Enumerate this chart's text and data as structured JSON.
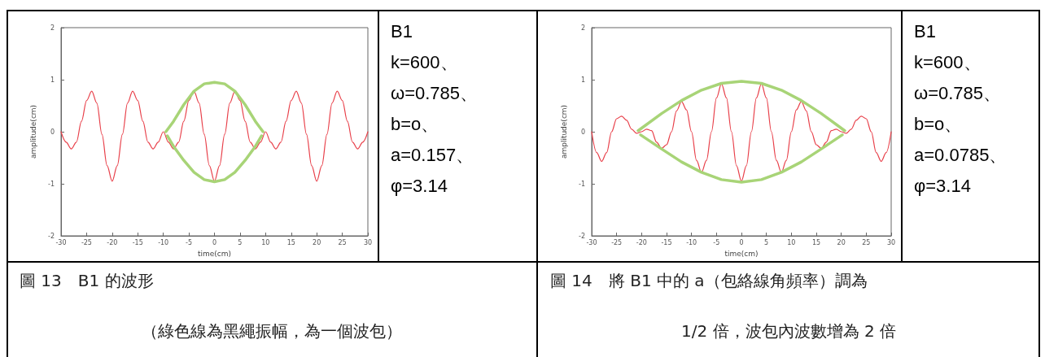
{
  "chart_data": [
    {
      "type": "line",
      "xlabel": "time(cm)",
      "ylabel": "amplitude(cm)",
      "xlim": [
        -30,
        30
      ],
      "xticks": [
        -30,
        -25,
        -20,
        -15,
        -10,
        -5,
        0,
        5,
        10,
        15,
        20,
        25,
        30
      ],
      "ylim": [
        -2,
        2
      ],
      "yticks": [
        -2,
        -1,
        0,
        1,
        2
      ],
      "grid": false,
      "marker": "none",
      "line_style": "solid",
      "annotations": [
        "圖 13　B1 的波形",
        "（綠色線為黑繩振幅，為一個波包）"
      ],
      "series": [
        {
          "color": "#e8404a",
          "x": [
            -30,
            -29,
            -28,
            -27,
            -26,
            -25,
            -24,
            -23,
            -22,
            -21,
            -20,
            -19,
            -18,
            -17,
            -16,
            -15,
            -14,
            -13,
            -12,
            -11,
            -10,
            -9,
            -8,
            -7,
            -6,
            -5,
            -4,
            -3,
            -2,
            -1,
            0,
            1,
            2,
            3,
            4,
            5,
            6,
            7,
            8,
            9,
            10,
            11,
            12,
            13,
            14,
            15,
            16,
            17,
            18,
            19,
            20,
            21,
            22,
            23,
            24,
            25,
            26,
            27,
            28,
            29,
            30
          ],
          "values": [
            0,
            -0.2,
            -0.33,
            -0.2,
            0.2,
            0.6,
            0.78,
            0.55,
            -0.05,
            -0.65,
            -0.95,
            -0.65,
            -0.05,
            0.55,
            0.78,
            0.6,
            0.2,
            -0.2,
            -0.33,
            -0.2,
            0,
            -0.2,
            -0.33,
            -0.2,
            0.2,
            0.6,
            0.78,
            0.55,
            -0.05,
            -0.65,
            -0.95,
            -0.65,
            -0.05,
            0.55,
            0.78,
            0.6,
            0.2,
            -0.2,
            -0.33,
            -0.2,
            0,
            -0.2,
            -0.33,
            -0.2,
            0.2,
            0.6,
            0.78,
            0.55,
            -0.05,
            -0.65,
            -0.95,
            -0.65,
            -0.05,
            0.55,
            0.78,
            0.6,
            0.2,
            -0.2,
            -0.33,
            -0.2,
            0
          ]
        },
        {
          "color": "#a8d477",
          "x": [
            -9.5,
            -8,
            -6,
            -4,
            -2,
            0,
            2,
            4,
            6,
            8,
            9.5
          ],
          "values": [
            0,
            0.2,
            0.52,
            0.78,
            0.92,
            0.95,
            0.92,
            0.78,
            0.52,
            0.2,
            0
          ]
        },
        {
          "color": "#a8d477",
          "x": [
            -9.2,
            -8,
            -6,
            -4,
            -2,
            0,
            2,
            4,
            6,
            8,
            9.2
          ],
          "values": [
            -0.08,
            -0.28,
            -0.55,
            -0.78,
            -0.92,
            -0.96,
            -0.92,
            -0.78,
            -0.55,
            -0.28,
            -0.08
          ]
        }
      ]
    },
    {
      "type": "other",
      "annotations": [
        "B1",
        "k=600、",
        "ω=0.785、",
        "b=o、",
        "a=0.157、",
        "φ=3.14"
      ]
    },
    {
      "type": "line",
      "xlabel": "time(cm)",
      "ylabel": "amplitude(cm)",
      "xlim": [
        -30,
        30
      ],
      "xticks": [
        -30,
        -25,
        -20,
        -15,
        -10,
        -5,
        0,
        5,
        10,
        15,
        20,
        25,
        30
      ],
      "ylim": [
        -2,
        2
      ],
      "yticks": [
        -2,
        -1,
        0,
        1,
        2
      ],
      "grid": false,
      "marker": "none",
      "line_style": "solid",
      "annotations": [
        "圖 14　將 B1 中的 a（包絡線角頻率）調為",
        "1/2 倍，波包內波數增為 2 倍"
      ],
      "series": [
        {
          "color": "#e8404a",
          "x": [
            -30,
            -29,
            -28,
            -27,
            -26,
            -25,
            -24,
            -23,
            -22,
            -21,
            -20,
            -19,
            -18,
            -17,
            -16,
            -15,
            -14,
            -13,
            -12,
            -11,
            -10,
            -9,
            -8,
            -7,
            -6,
            -5,
            -4,
            -3,
            -2,
            -1,
            0,
            1,
            2,
            3,
            4,
            5,
            6,
            7,
            8,
            9,
            10,
            11,
            12,
            13,
            14,
            15,
            16,
            17,
            18,
            19,
            20,
            21,
            22,
            23,
            24,
            25,
            26,
            27,
            28,
            29,
            30
          ],
          "values": [
            0,
            -0.4,
            -0.57,
            -0.4,
            0,
            0.25,
            0.3,
            0.22,
            0.05,
            -0.03,
            0,
            0.05,
            0.02,
            -0.2,
            -0.32,
            -0.25,
            0,
            0.4,
            0.58,
            0.42,
            0,
            -0.55,
            -0.78,
            -0.55,
            0,
            0.65,
            0.92,
            0.65,
            0,
            -0.65,
            -0.95,
            -0.65,
            0,
            0.65,
            0.92,
            0.65,
            0,
            -0.55,
            -0.78,
            -0.55,
            0,
            0.42,
            0.58,
            0.4,
            0,
            -0.25,
            -0.32,
            -0.2,
            0.02,
            0.05,
            0,
            -0.03,
            0.05,
            0.22,
            0.3,
            0.25,
            0,
            -0.4,
            -0.57,
            -0.4,
            0
          ]
        },
        {
          "color": "#a8d477",
          "x": [
            -20.7,
            -16,
            -12,
            -8,
            -4,
            0,
            4,
            8,
            12,
            16,
            20.7
          ],
          "values": [
            0.02,
            0.35,
            0.6,
            0.8,
            0.93,
            0.97,
            0.93,
            0.8,
            0.6,
            0.35,
            0.02
          ]
        },
        {
          "color": "#a8d477",
          "x": [
            -20.2,
            -16,
            -12,
            -8,
            -4,
            0,
            4,
            8,
            12,
            16,
            20.2
          ],
          "values": [
            -0.06,
            -0.33,
            -0.58,
            -0.78,
            -0.92,
            -0.97,
            -0.92,
            -0.78,
            -0.58,
            -0.33,
            -0.06
          ]
        }
      ]
    },
    {
      "type": "other",
      "annotations": [
        "B1",
        "k=600、",
        "ω=0.785、",
        "b=o、",
        "a=0.0785、",
        "φ=3.14"
      ]
    }
  ]
}
